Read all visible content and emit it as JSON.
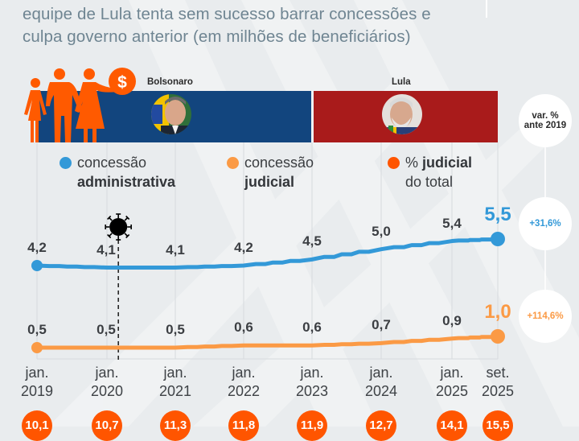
{
  "subtitle": {
    "line1": "equipe de Lula tenta sem sucesso barrar concessões e",
    "line2": "culpa governo anterior (em milhões de beneficiários)"
  },
  "governments": [
    {
      "name": "Bolsonaro",
      "color": "#12457e"
    },
    {
      "name": "Lula",
      "color": "#a91b1b"
    }
  ],
  "icons": {
    "family": "family-with-money-icon",
    "money": "dollar-icon",
    "covid": "virus-icon"
  },
  "legend": [
    {
      "line1": "concessão",
      "line2": "administrativa",
      "color": "#3399d8"
    },
    {
      "line1": "concessão",
      "line2": "judicial",
      "color": "#fb9a45"
    },
    {
      "line1_prefix": "% ",
      "line1_bold": "judicial",
      "line2": "do total",
      "color": "#ff5500"
    }
  ],
  "var_header": {
    "line1": "var. %",
    "line2": "ante 2019"
  },
  "colors": {
    "administrativa": "#3399d8",
    "judicial": "#fb9a45",
    "pct_judicial": "#ff5500",
    "bolsonaro": "#12457e",
    "lula": "#a91b1b"
  },
  "chart_data": {
    "type": "line",
    "title": "equipe de Lula tenta sem sucesso barrar concessões e culpa governo anterior (em milhões de beneficiários)",
    "xlabel": "",
    "ylabel": "milhões de beneficiários",
    "categories": [
      {
        "line1": "jan.",
        "line2": "2019"
      },
      {
        "line1": "jan.",
        "line2": "2020"
      },
      {
        "line1": "jan.",
        "line2": "2021"
      },
      {
        "line1": "jan.",
        "line2": "2022"
      },
      {
        "line1": "jan.",
        "line2": "2023"
      },
      {
        "line1": "jan.",
        "line2": "2024"
      },
      {
        "line1": "jan.",
        "line2": "2025"
      },
      {
        "line1": "set.",
        "line2": "2025"
      }
    ],
    "x_months": [
      0,
      12,
      24,
      36,
      48,
      60,
      72,
      80
    ],
    "series": [
      {
        "name": "concessão administrativa",
        "values": [
          4.2,
          4.1,
          4.1,
          4.2,
          4.5,
          5.0,
          5.4,
          5.5
        ],
        "labels": [
          "4,2",
          "4,1",
          "4,1",
          "4,2",
          "4,5",
          "5,0",
          "5,4",
          "5,5"
        ],
        "var_vs_2019": "+31,6%"
      },
      {
        "name": "concessão judicial",
        "values": [
          0.5,
          0.5,
          0.5,
          0.6,
          0.6,
          0.7,
          0.9,
          1.0
        ],
        "labels": [
          "0,5",
          "0,5",
          "0,5",
          "0,6",
          "0,6",
          "0,7",
          "0,9",
          "1,0"
        ],
        "var_vs_2019": "+114,6%"
      },
      {
        "name": "% judicial do total",
        "values": [
          10.1,
          10.7,
          11.3,
          11.8,
          11.9,
          12.7,
          14.1,
          15.5
        ],
        "labels": [
          "10,1",
          "10,7",
          "11,3",
          "11,8",
          "11,9",
          "12,7",
          "14,1",
          "15,5"
        ]
      }
    ],
    "annotations": [
      {
        "type": "covid-marker",
        "at_month": 14,
        "label": "virus-icon"
      },
      {
        "type": "period",
        "name": "Bolsonaro",
        "from_month": 0,
        "to_month": 48
      },
      {
        "type": "period",
        "name": "Lula",
        "from_month": 48,
        "to_month": 80
      }
    ],
    "legend_position": "top",
    "grid": "vertical"
  }
}
